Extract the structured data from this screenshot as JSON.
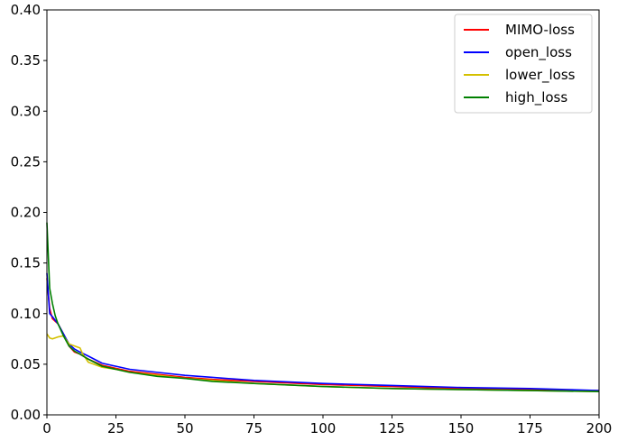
{
  "chart_data": {
    "type": "line",
    "title": "",
    "xlabel": "",
    "ylabel": "",
    "xlim": [
      0,
      200
    ],
    "ylim": [
      0,
      0.4
    ],
    "x_ticks": [
      0,
      25,
      50,
      75,
      100,
      125,
      150,
      175,
      200
    ],
    "x_tick_labels": [
      "0",
      "25",
      "50",
      "75",
      "100",
      "125",
      "150",
      "175",
      "200"
    ],
    "y_ticks": [
      0,
      0.05,
      0.1,
      0.15,
      0.2,
      0.25,
      0.3,
      0.35,
      0.4
    ],
    "y_tick_labels": [
      "0.00",
      "0.05",
      "0.10",
      "0.15",
      "0.20",
      "0.25",
      "0.30",
      "0.35",
      "0.40"
    ],
    "grid": false,
    "legend_position": "top-right",
    "series": [
      {
        "name": "MIMO-loss",
        "color": "#ff0000",
        "x": [
          0,
          1,
          2,
          4,
          6,
          8,
          10,
          12,
          15,
          20,
          25,
          30,
          40,
          50,
          60,
          75,
          100,
          125,
          150,
          175,
          200
        ],
        "y": [
          0.135,
          0.105,
          0.095,
          0.09,
          0.08,
          0.068,
          0.062,
          0.06,
          0.055,
          0.049,
          0.046,
          0.043,
          0.04,
          0.037,
          0.035,
          0.033,
          0.03,
          0.028,
          0.026,
          0.025,
          0.024
        ]
      },
      {
        "name": "open_loss",
        "color": "#0000ff",
        "x": [
          0,
          1,
          2,
          4,
          6,
          8,
          10,
          12,
          15,
          20,
          25,
          30,
          40,
          50,
          60,
          75,
          100,
          125,
          150,
          175,
          200
        ],
        "y": [
          0.14,
          0.1,
          0.097,
          0.09,
          0.08,
          0.07,
          0.065,
          0.062,
          0.058,
          0.051,
          0.048,
          0.045,
          0.042,
          0.039,
          0.037,
          0.034,
          0.031,
          0.029,
          0.027,
          0.026,
          0.024
        ]
      },
      {
        "name": "lower_loss",
        "color": "#d4c000",
        "x": [
          0,
          1,
          2,
          4,
          6,
          8,
          10,
          12,
          13,
          15,
          20,
          25,
          30,
          40,
          50,
          60,
          75,
          100,
          125,
          150,
          175,
          200
        ],
        "y": [
          0.08,
          0.076,
          0.075,
          0.077,
          0.078,
          0.07,
          0.068,
          0.066,
          0.06,
          0.052,
          0.047,
          0.045,
          0.042,
          0.039,
          0.036,
          0.034,
          0.031,
          0.028,
          0.026,
          0.025,
          0.024,
          0.023
        ]
      },
      {
        "name": "high_loss",
        "color": "#008000",
        "x": [
          0,
          1,
          2,
          3,
          4,
          6,
          8,
          10,
          12,
          15,
          20,
          25,
          30,
          40,
          50,
          60,
          75,
          100,
          125,
          150,
          175,
          200
        ],
        "y": [
          0.19,
          0.125,
          0.11,
          0.098,
          0.09,
          0.078,
          0.068,
          0.063,
          0.06,
          0.055,
          0.048,
          0.045,
          0.042,
          0.038,
          0.036,
          0.033,
          0.031,
          0.028,
          0.026,
          0.025,
          0.024,
          0.023
        ]
      }
    ]
  }
}
